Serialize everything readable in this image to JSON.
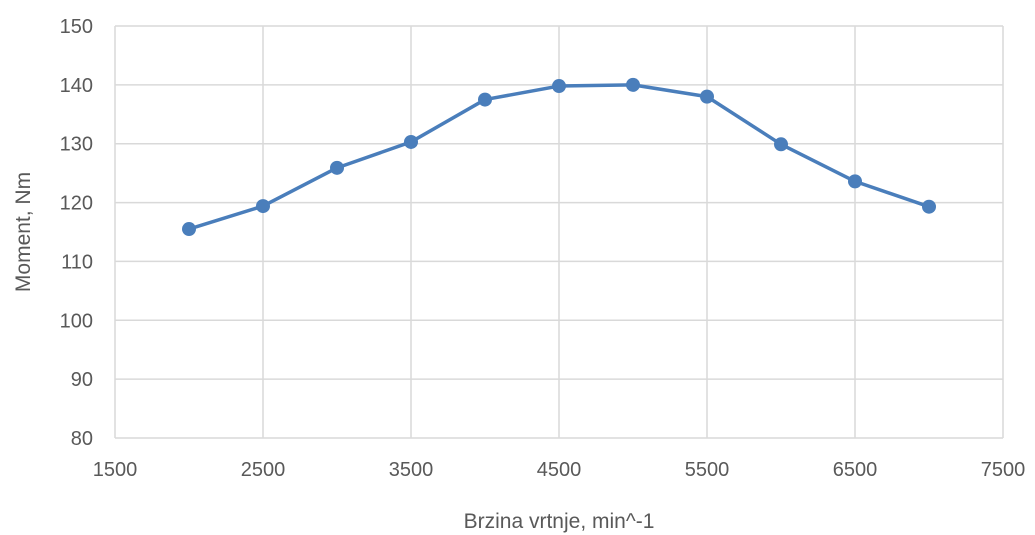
{
  "chart_data": {
    "type": "scatter",
    "xlabel": "Brzina vrtnje, min^-1",
    "ylabel": "Moment, Nm",
    "xlim": [
      1500,
      7500
    ],
    "ylim": [
      80,
      150
    ],
    "xticks": [
      1500,
      2500,
      3500,
      4500,
      5500,
      6500,
      7500
    ],
    "yticks": [
      80,
      90,
      100,
      110,
      120,
      130,
      140,
      150
    ],
    "grid": true,
    "legend": "none",
    "series": [
      {
        "color": "#4a7ebb",
        "x": [
          2000,
          2500,
          3000,
          3500,
          4000,
          4500,
          5000,
          5500,
          6000,
          6500,
          7000
        ],
        "y": [
          115.5,
          119.4,
          125.9,
          130.3,
          137.5,
          139.8,
          140.0,
          138.0,
          129.9,
          123.6,
          119.3
        ]
      }
    ]
  }
}
